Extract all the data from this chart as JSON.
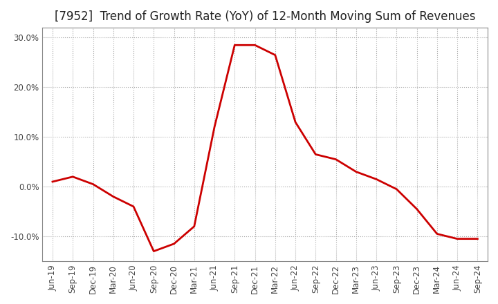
{
  "title": "[7952]  Trend of Growth Rate (YoY) of 12-Month Moving Sum of Revenues",
  "x_labels": [
    "Jun-19",
    "Sep-19",
    "Dec-19",
    "Mar-20",
    "Jun-20",
    "Sep-20",
    "Dec-20",
    "Mar-21",
    "Jun-21",
    "Sep-21",
    "Dec-21",
    "Mar-22",
    "Jun-22",
    "Sep-22",
    "Dec-22",
    "Mar-23",
    "Jun-23",
    "Sep-23",
    "Dec-23",
    "Mar-24",
    "Jun-24",
    "Sep-24"
  ],
  "y_values": [
    0.01,
    0.02,
    0.005,
    -0.02,
    -0.04,
    -0.13,
    -0.115,
    -0.08,
    0.12,
    0.285,
    0.285,
    0.265,
    0.13,
    0.065,
    0.055,
    0.03,
    0.015,
    -0.005,
    -0.045,
    -0.095,
    -0.105,
    -0.105
  ],
  "ylim": [
    -0.15,
    0.32
  ],
  "yticks": [
    -0.1,
    0.0,
    0.1,
    0.2,
    0.3
  ],
  "line_color": "#cc0000",
  "background_color": "#ffffff",
  "grid_color": "#aaaaaa",
  "title_fontsize": 12,
  "tick_fontsize": 8.5,
  "title_color": "#222222"
}
